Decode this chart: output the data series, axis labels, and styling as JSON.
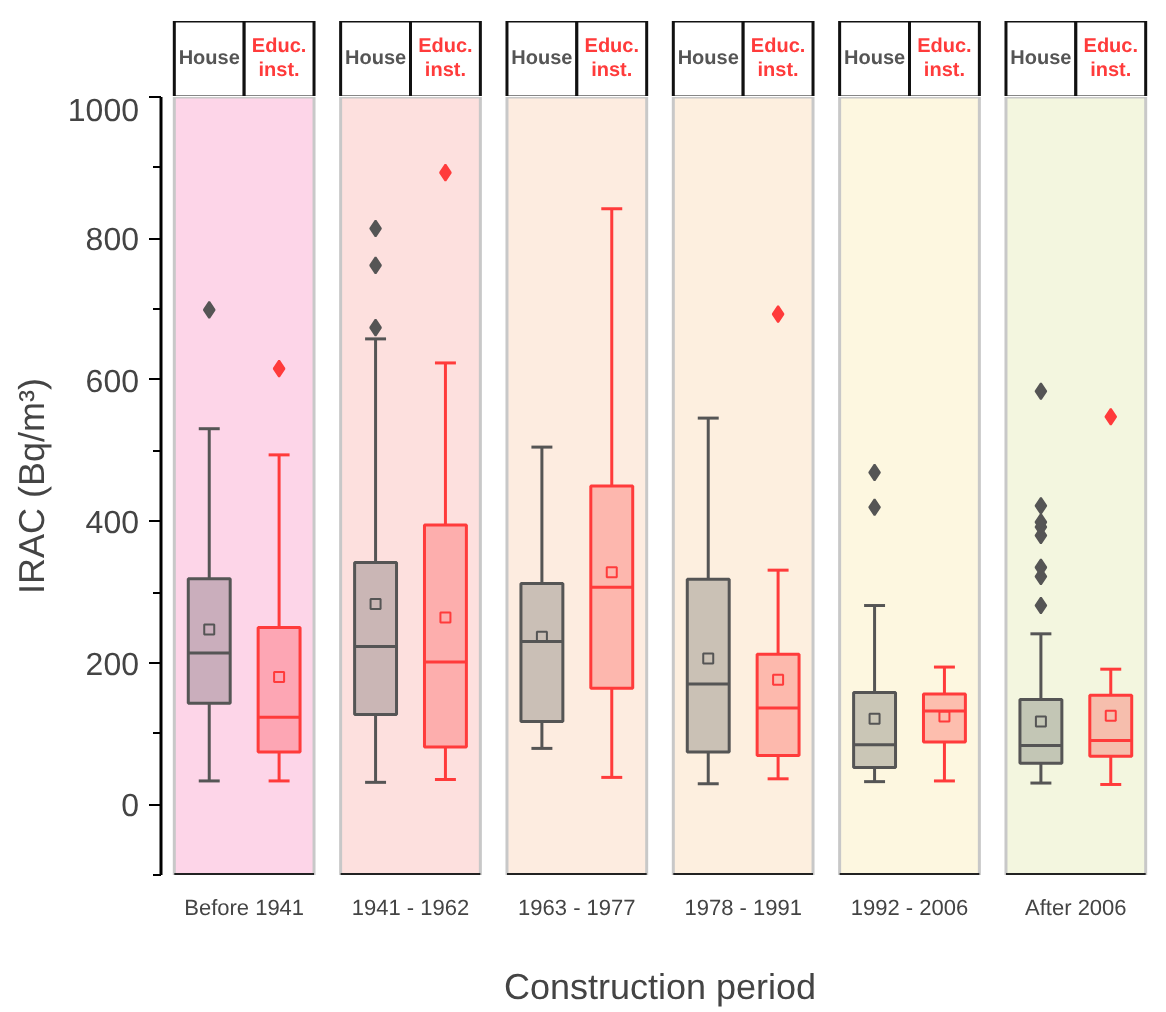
{
  "chart_data": {
    "type": "box",
    "xlabel": "Construction period",
    "ylabel": "IRAC (Bq/m³)",
    "categories": [
      "Before 1941",
      "1941 - 1962",
      "1963 - 1977",
      "1978 - 1991",
      "1992 - 2006",
      "After 2006"
    ],
    "ylim": [
      -100,
      1000
    ],
    "yticks": [
      0,
      200,
      400,
      600,
      800,
      1000
    ],
    "grid": false,
    "legend": "top",
    "marker": "diamond",
    "bands": [
      {
        "axis": "x",
        "from": "Before 1941",
        "to": "Before 1941",
        "color": "#fdd5e8"
      },
      {
        "axis": "x",
        "from": "1941 - 1962",
        "to": "1941 - 1962",
        "color": "#fde0de"
      },
      {
        "axis": "x",
        "from": "1963 - 1977",
        "to": "1963 - 1977",
        "color": "#fdece0"
      },
      {
        "axis": "x",
        "from": "1978 - 1991",
        "to": "1978 - 1991",
        "color": "#fdefdf"
      },
      {
        "axis": "x",
        "from": "1992 - 2006",
        "to": "1992 - 2006",
        "color": "#fdf7e0"
      },
      {
        "axis": "x",
        "from": "After 2006",
        "to": "After 2006",
        "color": "#f3f6df"
      }
    ],
    "series": [
      {
        "name": "House",
        "color": "#555555",
        "boxes": [
          {
            "low": 33,
            "q1": 143,
            "median": 214,
            "q3": 319,
            "high": 531,
            "mean": 247,
            "outliers": [
              699
            ]
          },
          {
            "low": 31,
            "q1": 127,
            "median": 223,
            "q3": 342,
            "high": 658,
            "mean": 283,
            "outliers": [
              674,
              762,
              814
            ]
          },
          {
            "low": 79,
            "q1": 117,
            "median": 230,
            "q3": 312,
            "high": 505,
            "mean": 237
          },
          {
            "low": 29,
            "q1": 74,
            "median": 170,
            "q3": 318,
            "high": 546,
            "mean": 206
          },
          {
            "low": 32,
            "q1": 52,
            "median": 84,
            "q3": 158,
            "high": 281,
            "mean": 121,
            "outliers": [
              420,
              469
            ]
          },
          {
            "low": 30,
            "q1": 58,
            "median": 83,
            "q3": 148,
            "high": 241,
            "mean": 117,
            "outliers": [
              281,
              322,
              335,
              380,
              392,
              399,
              422,
              584
            ]
          }
        ]
      },
      {
        "name": "Educ. inst.",
        "color": "#ff3b3b",
        "boxes": [
          {
            "low": 33,
            "q1": 74,
            "median": 123,
            "q3": 250,
            "high": 494,
            "mean": 180,
            "outliers": [
              616
            ]
          },
          {
            "low": 35,
            "q1": 81,
            "median": 201,
            "q3": 395,
            "high": 624,
            "mean": 264,
            "outliers": [
              893
            ]
          },
          {
            "low": 38,
            "q1": 164,
            "median": 307,
            "q3": 450,
            "high": 842,
            "mean": 328
          },
          {
            "low": 36,
            "q1": 69,
            "median": 136,
            "q3": 212,
            "high": 331,
            "mean": 176,
            "outliers": [
              693
            ]
          },
          {
            "low": 33,
            "q1": 88,
            "median": 132,
            "q3": 156,
            "high": 194,
            "mean": 124
          },
          {
            "low": 28,
            "q1": 68,
            "median": 90,
            "q3": 154,
            "high": 191,
            "mean": 125,
            "outliers": [
              548
            ]
          }
        ]
      }
    ]
  }
}
